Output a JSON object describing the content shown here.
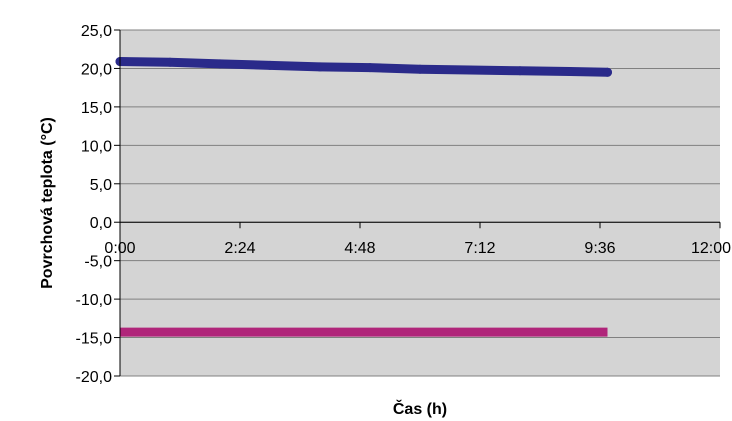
{
  "chart_data": {
    "type": "line",
    "xlabel": "Čas (h)",
    "ylabel": "Povrchová teplota (°C)",
    "xlim": [
      0,
      12
    ],
    "ylim": [
      -20,
      25
    ],
    "x_ticks": [
      {
        "value": 0,
        "label": "0:00"
      },
      {
        "value": 2.4,
        "label": "2:24"
      },
      {
        "value": 4.8,
        "label": "4:48"
      },
      {
        "value": 7.2,
        "label": "7:12"
      },
      {
        "value": 9.6,
        "label": "9:36"
      },
      {
        "value": 12,
        "label": "12:00"
      }
    ],
    "y_ticks": [
      {
        "value": 25,
        "label": "25,0"
      },
      {
        "value": 20,
        "label": "20,0"
      },
      {
        "value": 15,
        "label": "15,0"
      },
      {
        "value": 10,
        "label": "10,0"
      },
      {
        "value": 5,
        "label": "5,0"
      },
      {
        "value": 0,
        "label": "0,0"
      },
      {
        "value": -5,
        "label": "-5,0"
      },
      {
        "value": -10,
        "label": "-10,0"
      },
      {
        "value": -15,
        "label": "-15,0"
      },
      {
        "value": -20,
        "label": "-20,0"
      }
    ],
    "grid": true,
    "plot_background": "#d4d4d4",
    "series": [
      {
        "color": "#2a2a8a",
        "x": [
          0,
          1,
          2,
          3,
          4,
          5,
          6,
          7,
          8,
          9,
          9.75
        ],
        "y": [
          20.9,
          20.8,
          20.6,
          20.4,
          20.2,
          20.1,
          19.9,
          19.8,
          19.7,
          19.6,
          19.5
        ]
      },
      {
        "color": "#b0257a",
        "x": [
          0,
          9.75
        ],
        "y": [
          -14.3,
          -14.3
        ]
      }
    ]
  }
}
